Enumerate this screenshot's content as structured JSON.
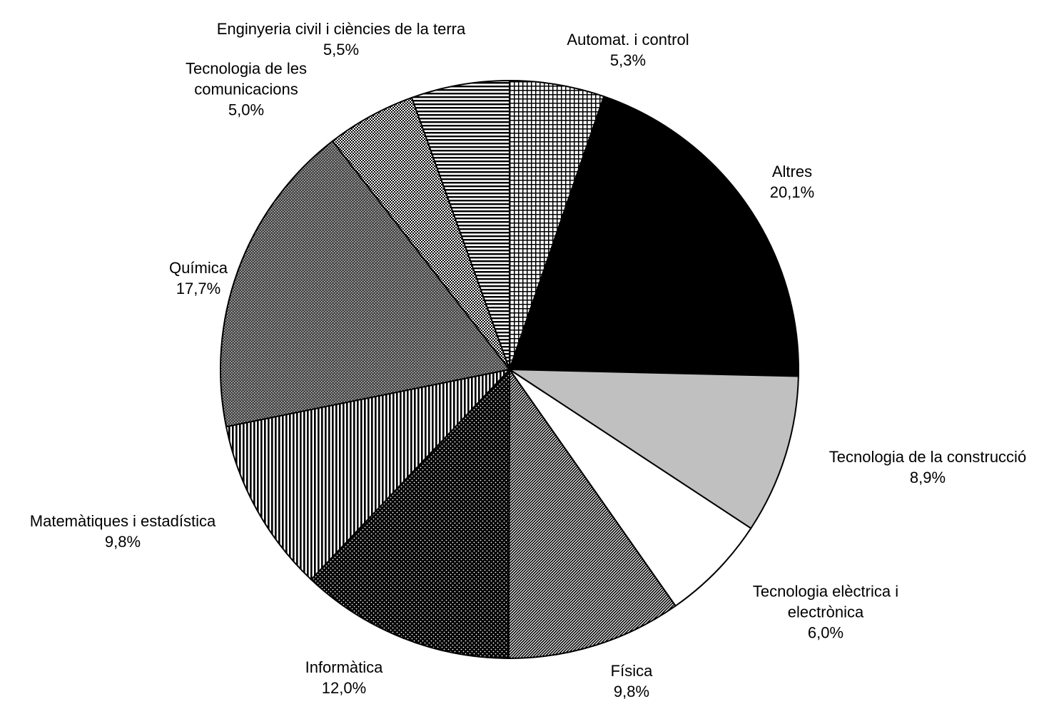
{
  "chart_data": {
    "type": "pie",
    "categories": [
      "Automat. i control",
      "Altres",
      "Tecnologia de la construcció",
      "Tecnologia elèctrica i electrònica",
      "Física",
      "Informàtica",
      "Matemàtiques i estadística",
      "Química",
      "Tecnologia de les comunicacions",
      "Enginyeria civil i ciències de la terra"
    ],
    "values": [
      5.3,
      20.1,
      8.9,
      6.0,
      9.8,
      12.0,
      9.8,
      17.7,
      5.0,
      5.5
    ],
    "value_labels": [
      "5,3%",
      "20,1%",
      "8,9%",
      "6,0%",
      "9,8%",
      "12,0%",
      "9,8%",
      "17,7%",
      "5,0%",
      "5,5%"
    ]
  }
}
